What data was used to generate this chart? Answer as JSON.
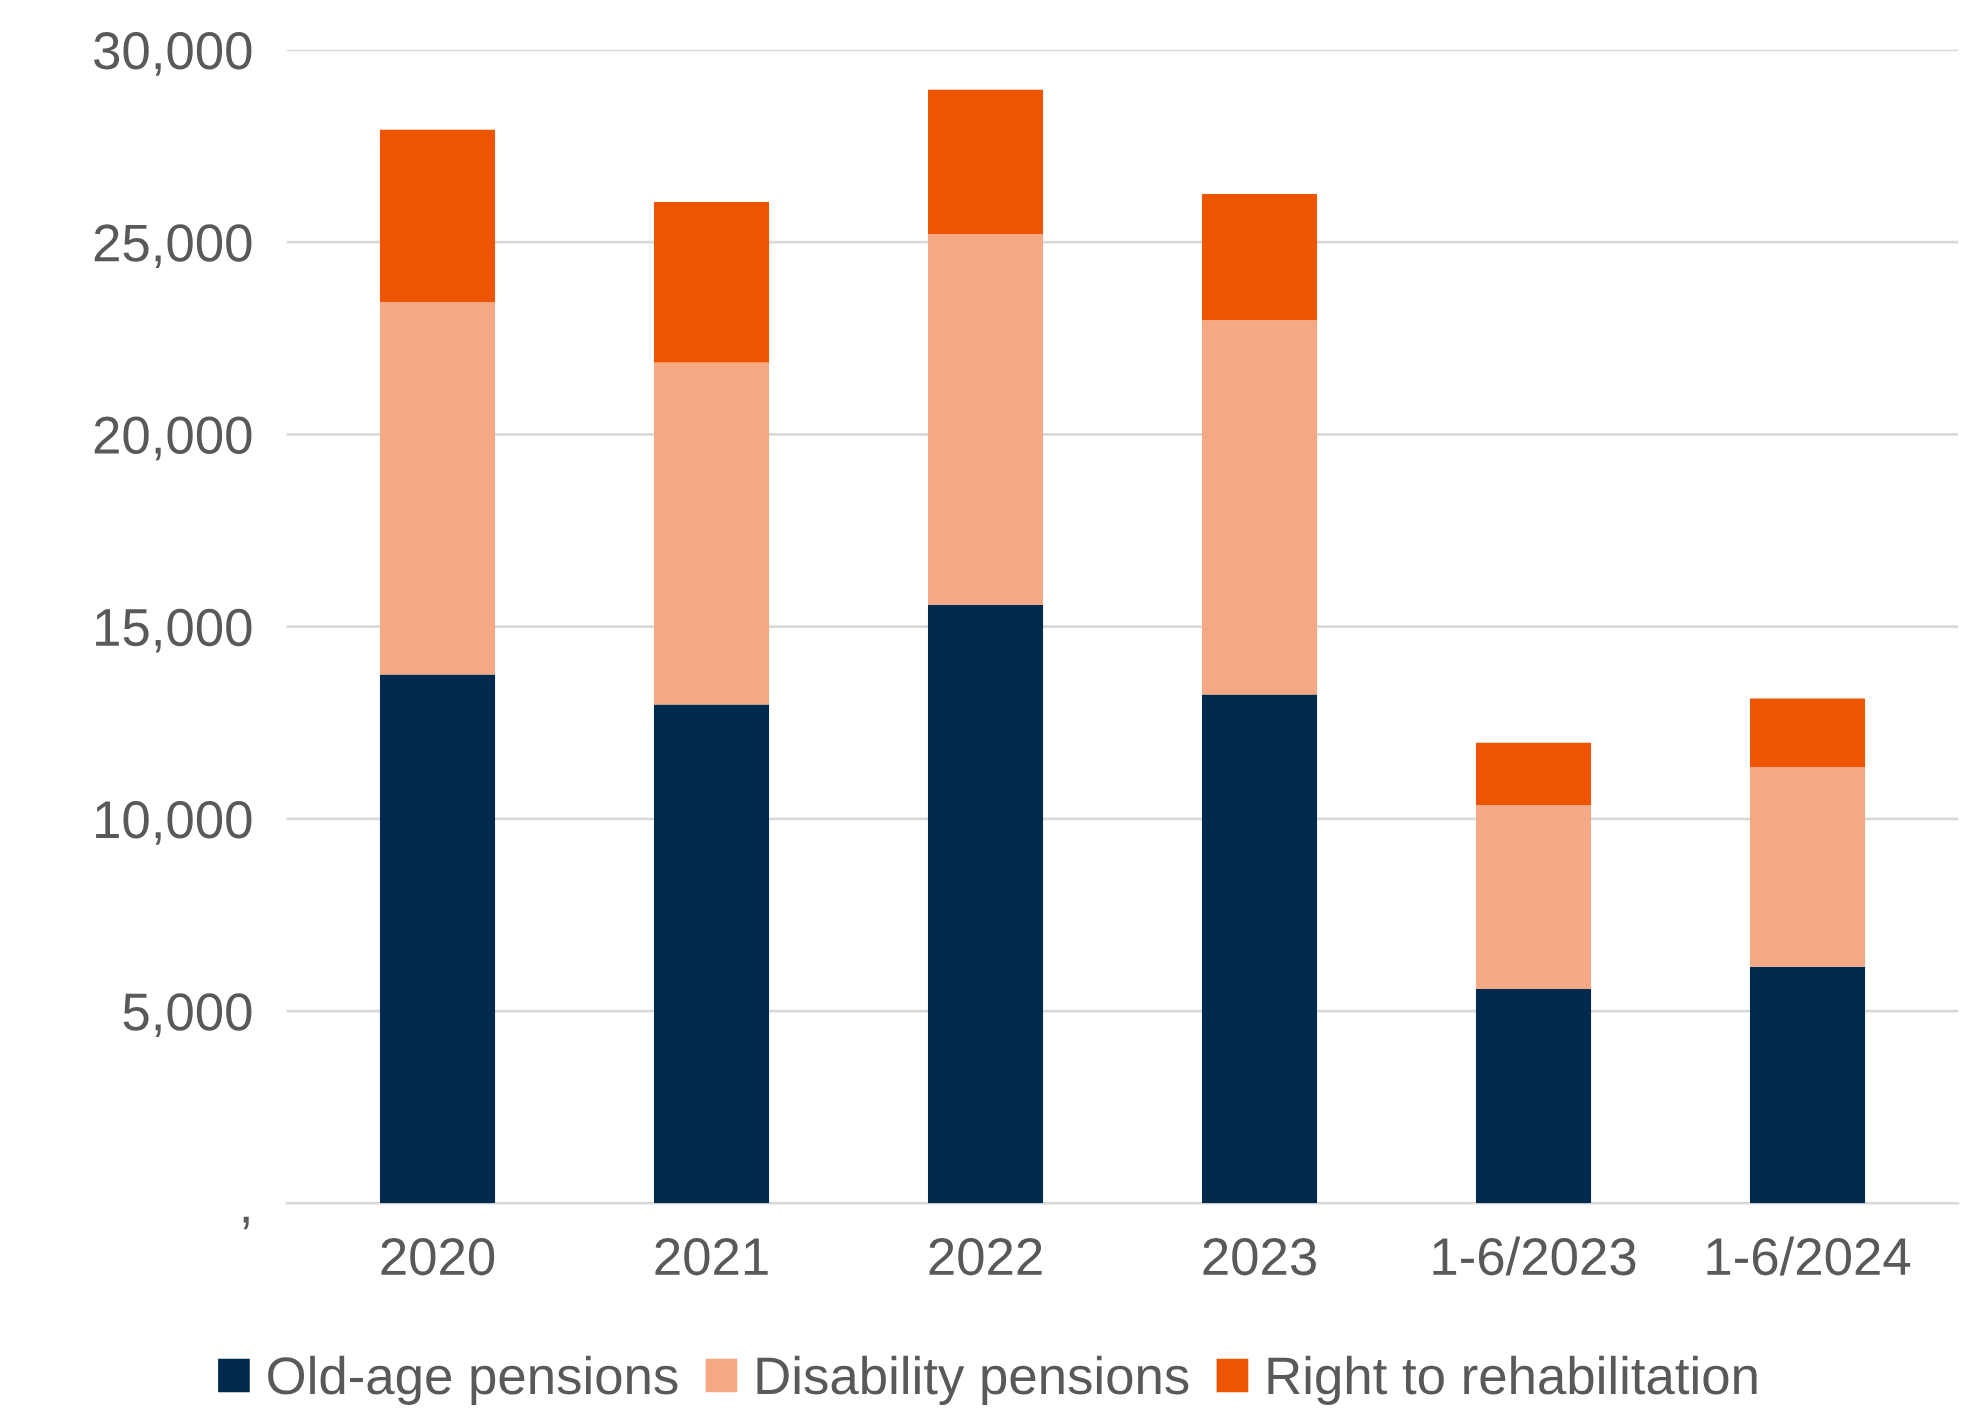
{
  "chart_data": {
    "type": "bar",
    "stacked": true,
    "categories": [
      "2020",
      "2021",
      "2022",
      "2023",
      "1-6/2023",
      "1-6/2024"
    ],
    "series": [
      {
        "name": "Old-age pensions",
        "color": "#002a4d",
        "values": [
          13750,
          12970,
          15570,
          13230,
          5570,
          6150
        ]
      },
      {
        "name": "Disability pensions",
        "color": "#f4a883",
        "values": [
          9690,
          8900,
          9640,
          9740,
          4790,
          5200
        ]
      },
      {
        "name": "Right to rehabilitation",
        "color": "#ee5500",
        "values": [
          4480,
          4170,
          3750,
          3280,
          1620,
          1780
        ]
      }
    ],
    "ylim": [
      0,
      30000
    ],
    "yticks": [
      {
        "value": 0,
        "label": ","
      },
      {
        "value": 5000,
        "label": "5,000"
      },
      {
        "value": 10000,
        "label": "10,000"
      },
      {
        "value": 15000,
        "label": "15,000"
      },
      {
        "value": 20000,
        "label": "20,000"
      },
      {
        "value": 25000,
        "label": "25,000"
      },
      {
        "value": 30000,
        "label": "30,000"
      }
    ],
    "grid": "y",
    "legend": "bottom"
  }
}
